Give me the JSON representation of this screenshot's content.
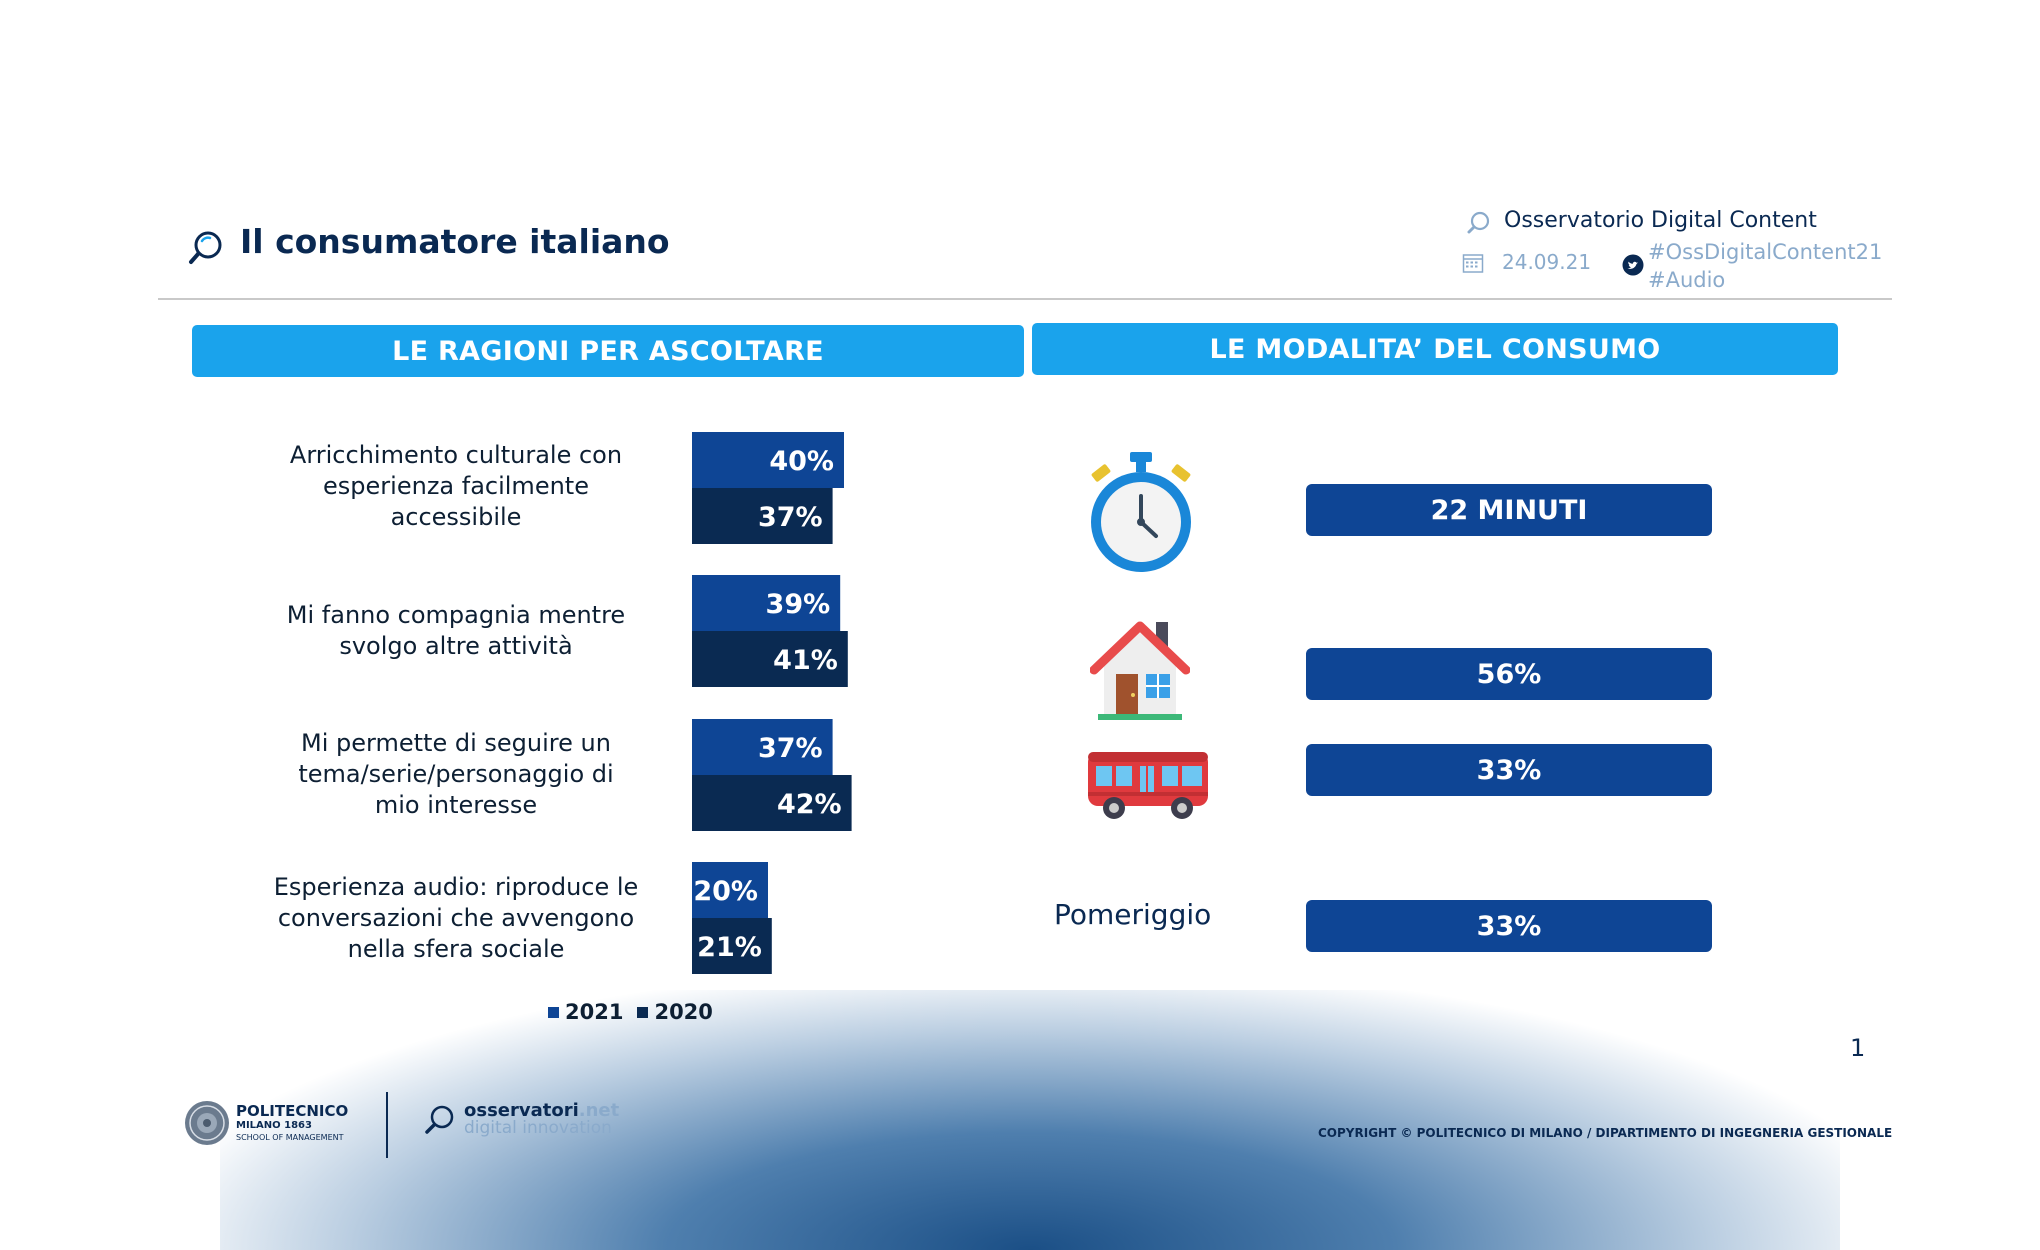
{
  "header": {
    "title": "Il consumatore italiano",
    "observatory": "Osservatorio Digital Content",
    "date": "24.09.21",
    "hashtag1": "#OssDigitalContent21",
    "hashtag2": "#Audio"
  },
  "sections": {
    "left_title": "LE RAGIONI PER ASCOLTARE",
    "right_title": "LE MODALITA’ DEL CONSUMO"
  },
  "chart_data": {
    "type": "bar",
    "orientation": "horizontal",
    "categories": [
      [
        "Arricchimento culturale con",
        "esperienza facilmente",
        "accessibile"
      ],
      [
        "Mi fanno compagnia mentre",
        "svolgo altre attività"
      ],
      [
        "Mi permette di seguire un",
        "tema/serie/personaggio di",
        "mio interesse"
      ],
      [
        "Esperienza audio: riproduce le",
        "conversazioni che avvengono",
        "nella sfera sociale"
      ]
    ],
    "series": [
      {
        "name": "2021",
        "color": "#0e4595",
        "values": [
          40,
          39,
          37,
          20
        ],
        "labels": [
          "40%",
          "39%",
          "37%",
          "20%"
        ]
      },
      {
        "name": "2020",
        "color": "#0a2a52",
        "values": [
          37,
          41,
          42,
          21
        ],
        "labels": [
          "37%",
          "41%",
          "42%",
          "21%"
        ]
      }
    ],
    "xlim": [
      0,
      100
    ],
    "legend": [
      "2021",
      "2020"
    ],
    "legend_position": "bottom"
  },
  "modalities": {
    "duration": "22 MINUTI",
    "home": "56%",
    "transport": "33%",
    "afternoon_label": "Pomeriggio",
    "afternoon": "33%"
  },
  "footer": {
    "page_number": "1",
    "polimi_name": "POLITECNICO",
    "polimi_city": "MILANO 1863",
    "polimi_school": "SCHOOL OF MANAGEMENT",
    "osn_name": "osservatori",
    "osn_net": ".net",
    "osn_sub": "digital innovation",
    "copyright": "COPYRIGHT © POLITECNICO DI MILANO / DIPARTIMENTO DI INGEGNERIA GESTIONALE"
  },
  "colors": {
    "accent": "#1aa3ec",
    "navy": "#0e4595",
    "dark_navy": "#0a2a52"
  }
}
